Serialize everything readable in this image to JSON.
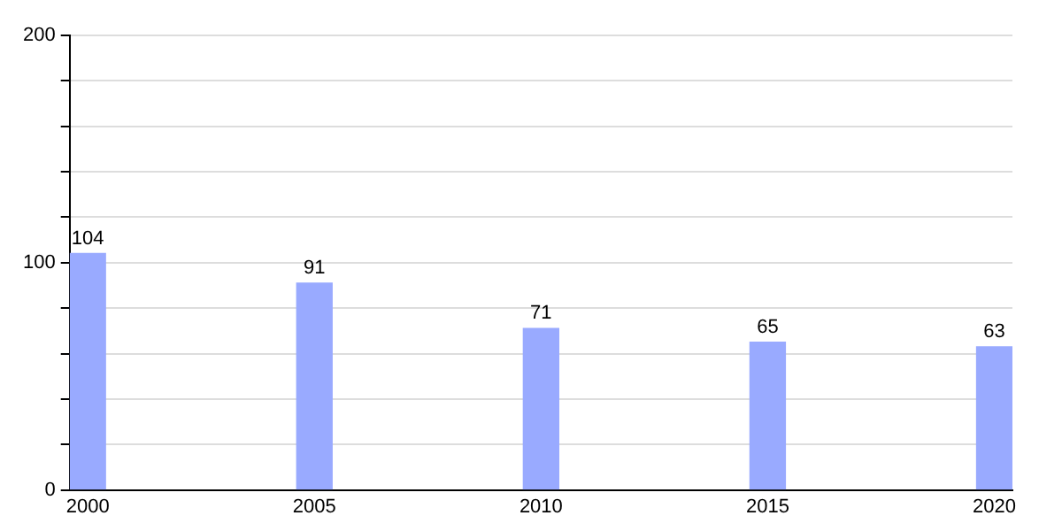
{
  "chart_data": {
    "type": "bar",
    "x": [
      2000,
      2005,
      2010,
      2015,
      2020
    ],
    "values": [
      104,
      91,
      71,
      65,
      63
    ],
    "color": "#99aaff",
    "data_labels": true,
    "xlim": [
      1999.6,
      2020.4
    ],
    "xticks": [
      2000,
      2005,
      2010,
      2015,
      2020
    ],
    "ylim": [
      0,
      200
    ],
    "yticks": [
      0,
      {
        "value": 20,
        "label": null
      },
      {
        "value": 40,
        "label": null
      },
      {
        "value": 60,
        "label": null
      },
      {
        "value": 80,
        "label": null
      },
      100,
      {
        "value": 120,
        "label": null
      },
      {
        "value": 140,
        "label": null
      },
      {
        "value": 160,
        "label": null
      },
      {
        "value": 180,
        "label": null
      },
      200
    ],
    "grid": "y",
    "legend": false
  }
}
